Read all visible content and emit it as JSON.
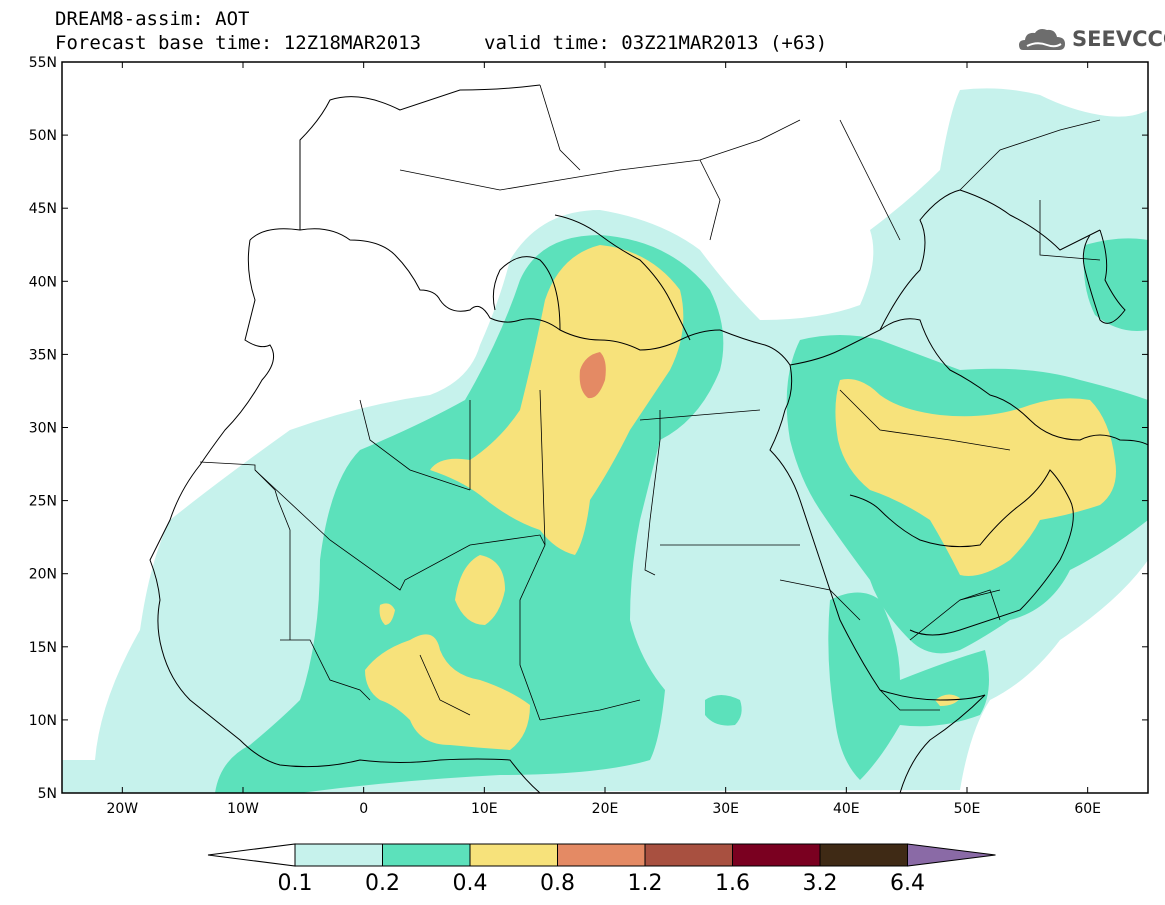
{
  "title": {
    "line1": "DREAM8-assim: AOT",
    "line2": "Forecast base time: 12Z18MAR2013",
    "valid": "valid time: 03Z21MAR2013 (+63)"
  },
  "logo": {
    "text": "SEEVCCC",
    "icon": "cloud-logo-icon"
  },
  "map": {
    "lat_labels": [
      "55N",
      "50N",
      "45N",
      "40N",
      "35N",
      "30N",
      "25N",
      "20N",
      "15N",
      "10N",
      "5N"
    ],
    "lon_labels": [
      "20W",
      "10W",
      "0",
      "10E",
      "20E",
      "30E",
      "40E",
      "50E",
      "60E"
    ],
    "lat_range": [
      5,
      55
    ],
    "lon_range": [
      -25,
      65
    ]
  },
  "colorbar": {
    "labels": [
      "0.1",
      "0.2",
      "0.4",
      "0.8",
      "1.2",
      "1.6",
      "3.2",
      "6.4"
    ],
    "colors": [
      "#ffffff",
      "#c6f2ec",
      "#5ce1bb",
      "#f7e27b",
      "#e48a64",
      "#a85040",
      "#7a0020",
      "#3f2a15",
      "#8a6aa6"
    ]
  }
}
